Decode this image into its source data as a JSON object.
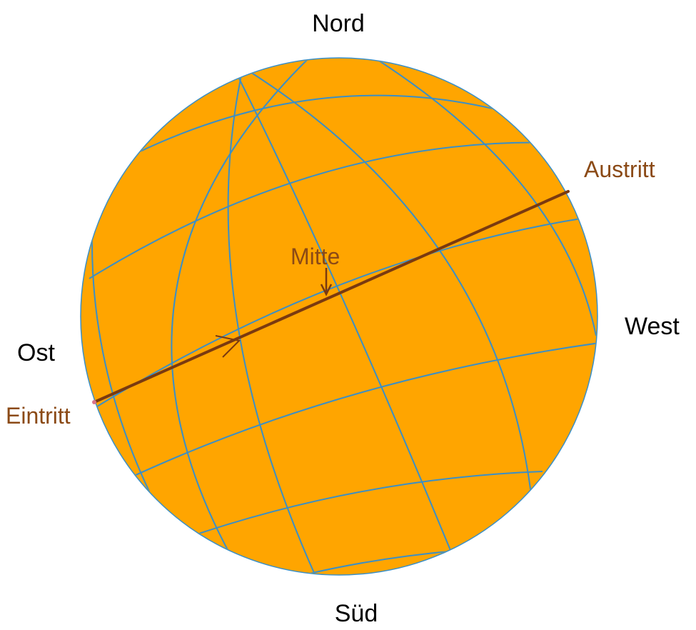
{
  "directions": {
    "north": "Nord",
    "south": "Süd",
    "east": "Ost",
    "west": "West"
  },
  "track_labels": {
    "entry": "Eintritt",
    "middle": "Mitte",
    "exit": "Austritt"
  },
  "colors": {
    "sun_disk": "#FFA500",
    "grid_lines": "#3A8FC7",
    "transit_track": "#7A3A10",
    "track_labels": "#8B4A16",
    "compass_labels": "#000000",
    "background": "#FFFFFF"
  }
}
